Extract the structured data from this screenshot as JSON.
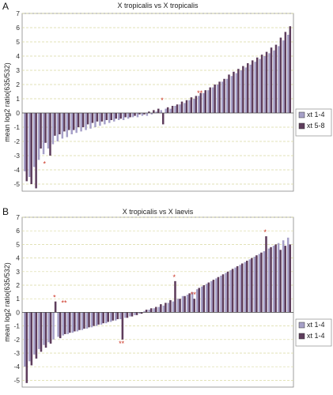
{
  "chart_data": [
    {
      "panel": "A",
      "type": "bar",
      "title": "X tropicalis vs X tropicalis",
      "ylabel": "mean log2 ratio(635/532)",
      "ylim": [
        -5.5,
        7
      ],
      "yticks": [
        -5,
        -4,
        -3,
        -2,
        -1,
        0,
        1,
        2,
        3,
        4,
        5,
        6,
        7
      ],
      "grid": "dashed horizontal",
      "legend_position": "right",
      "series": [
        {
          "name": "xt 1-4",
          "color": "#a6a0c8",
          "values": [
            -4.1,
            -4.5,
            -3.8,
            -3.3,
            -2.9,
            -2.5,
            -2.2,
            -2.0,
            -1.8,
            -1.7,
            -1.5,
            -1.4,
            -1.3,
            -1.2,
            -1.1,
            -1.0,
            -0.9,
            -0.8,
            -0.7,
            -0.6,
            -0.5,
            -0.5,
            -0.4,
            -0.3,
            -0.3,
            -0.2,
            -0.2,
            -0.1,
            0.1,
            0.2,
            0.3,
            0.3,
            0.5,
            0.6,
            0.7,
            0.9,
            1.0,
            1.2,
            1.4,
            1.6,
            1.8,
            2.0,
            2.2,
            2.4,
            2.6,
            2.8,
            3.0,
            3.2,
            3.4,
            3.6,
            3.8,
            4.0,
            4.2,
            4.4,
            4.7,
            5.1,
            5.5
          ]
        },
        {
          "name": "xt 5-8",
          "color": "#5e3d5c",
          "values": [
            -4.8,
            -5.0,
            -5.3,
            -2.5,
            -2.1,
            -3.0,
            -1.6,
            -1.5,
            -1.3,
            -1.2,
            -1.2,
            -1.0,
            -1.0,
            -0.8,
            -0.7,
            -0.6,
            -0.6,
            -0.5,
            -0.5,
            -0.4,
            -0.4,
            -0.3,
            -0.3,
            -0.2,
            -0.1,
            -0.1,
            0.1,
            0.2,
            0.3,
            -0.8,
            0.4,
            0.5,
            0.6,
            0.8,
            0.9,
            1.1,
            1.2,
            1.4,
            1.6,
            1.8,
            2.0,
            2.2,
            2.4,
            2.7,
            2.9,
            3.1,
            3.3,
            3.5,
            3.7,
            3.9,
            4.1,
            4.3,
            4.6,
            4.8,
            5.3,
            5.7,
            6.1
          ]
        }
      ],
      "annotations": [
        {
          "text": "*",
          "x_index": 4,
          "y": -3.3
        },
        {
          "text": "*",
          "x_index": 29,
          "y": 0.6
        },
        {
          "text": "**",
          "x_index": 37,
          "y": 1.1
        }
      ]
    },
    {
      "panel": "B",
      "type": "bar",
      "title": "X tropicalis vs X laevis",
      "ylabel": "mean log2 ratio(635/532)",
      "ylim": [
        -5.5,
        7
      ],
      "yticks": [
        -5,
        -4,
        -3,
        -2,
        -1,
        0,
        1,
        2,
        3,
        4,
        5,
        6,
        7
      ],
      "grid": "dashed horizontal",
      "legend_position": "right",
      "series": [
        {
          "name": "xt 1-4",
          "color": "#a6a0c8",
          "values": [
            -4.0,
            -3.6,
            -3.1,
            -2.7,
            -2.4,
            -2.2,
            -2.0,
            -1.8,
            -1.7,
            -1.6,
            -1.5,
            -1.4,
            -1.3,
            -1.2,
            -1.1,
            -1.0,
            -0.9,
            -0.8,
            -0.7,
            -0.6,
            -0.5,
            -0.4,
            -0.3,
            -0.2,
            -0.1,
            0.1,
            0.2,
            0.3,
            0.4,
            0.5,
            0.7,
            0.8,
            1.0,
            1.2,
            1.3,
            1.5,
            1.7,
            1.9,
            2.1,
            2.3,
            2.5,
            2.7,
            2.9,
            3.1,
            3.3,
            3.5,
            3.7,
            3.9,
            4.1,
            4.3,
            4.5,
            4.7,
            4.9,
            5.1,
            5.3,
            5.5
          ]
        },
        {
          "name": "xt 1-4",
          "color": "#5e3d5c",
          "values": [
            -5.2,
            -3.9,
            -3.4,
            -2.9,
            -2.6,
            -2.3,
            0.8,
            -1.9,
            -1.6,
            -1.5,
            -1.4,
            -1.3,
            -1.2,
            -1.1,
            -1.0,
            -0.9,
            -0.8,
            -0.7,
            -0.6,
            -0.5,
            -2.0,
            -0.4,
            -0.3,
            -0.2,
            -0.1,
            0.2,
            0.3,
            0.4,
            0.6,
            0.7,
            0.9,
            2.3,
            1.0,
            1.2,
            1.4,
            1.0,
            1.8,
            2.0,
            2.2,
            2.4,
            2.6,
            2.8,
            3.0,
            3.2,
            3.4,
            3.6,
            3.8,
            4.0,
            4.2,
            4.4,
            5.6,
            4.8,
            5.0,
            4.6,
            4.9,
            5.0
          ]
        }
      ],
      "annotations": [
        {
          "text": "*",
          "x_index": 6,
          "y": 0.8
        },
        {
          "text": "**",
          "x_index": 8,
          "y": 0.4
        },
        {
          "text": "**",
          "x_index": 20,
          "y": -2.0
        },
        {
          "text": "*",
          "x_index": 31,
          "y": 2.3
        },
        {
          "text": "**",
          "x_index": 35,
          "y": 1.0
        },
        {
          "text": "*",
          "x_index": 50,
          "y": 5.6
        }
      ]
    }
  ]
}
